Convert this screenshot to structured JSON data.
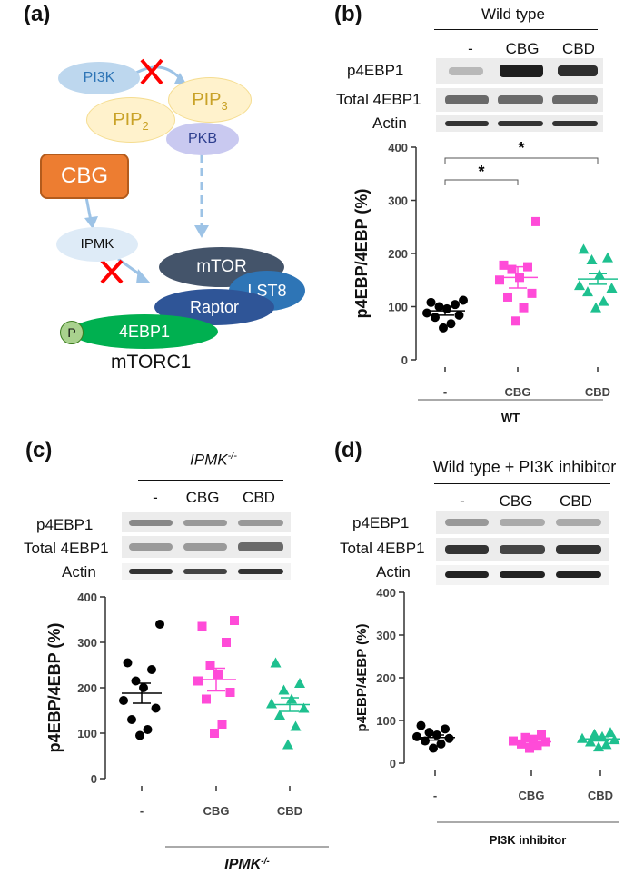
{
  "panel_a": {
    "label": "(a)",
    "nodes": {
      "pi3k": "PI3K",
      "pip2_base": "PIP",
      "pip2_sub": "2",
      "pip3_base": "PIP",
      "pip3_sub": "3",
      "pkb": "PKB",
      "cbg": "CBG",
      "ipmk": "IPMK",
      "mtor": "mTOR",
      "lst8": "LST8",
      "raptor": "Raptor",
      "p": "P",
      "e4ebp1": "4EBP1",
      "complex": "mTORC1"
    },
    "colors": {
      "cbg": "#ed7d31",
      "pi3k": "#bdd7ee",
      "pip": "#fff2cc",
      "pkb": "#c9c9f0",
      "mtor": "#44546a",
      "lst8": "#2e75b6",
      "raptor": "#2f5597",
      "e4ebp1": "#00b050",
      "arrow": "#9dc3e6",
      "cross": "#ff0000"
    }
  },
  "panel_b": {
    "label": "(b)",
    "header": "Wild type",
    "lanes": [
      "-",
      "CBG",
      "CBD"
    ],
    "rows": [
      "p4EBP1",
      "Total 4EBP1",
      "Actin"
    ],
    "chart_data": {
      "type": "scatter",
      "ylabel": "p4EBP/4EBP (%)",
      "ylim": [
        0,
        400
      ],
      "yticks": [
        "0",
        "100",
        "200",
        "300",
        "400"
      ],
      "categories": [
        "-",
        "CBG",
        "CBD"
      ],
      "group_label": "WT",
      "significance": [
        "*",
        "*"
      ],
      "series": [
        {
          "color": "#000000",
          "marker": "circle",
          "mean": 92,
          "sem": 8,
          "values": [
            60,
            68,
            80,
            84,
            88,
            96,
            100,
            104,
            108,
            112
          ]
        },
        {
          "color": "#ff4bd8",
          "marker": "square",
          "mean": 155,
          "sem": 20,
          "values": [
            73,
            98,
            118,
            125,
            150,
            155,
            170,
            175,
            178,
            260
          ]
        },
        {
          "color": "#1ec08f",
          "marker": "triangle",
          "mean": 152,
          "sem": 10,
          "values": [
            98,
            110,
            128,
            135,
            140,
            160,
            188,
            192,
            208
          ]
        }
      ]
    }
  },
  "panel_c": {
    "label": "(c)",
    "header": "IPMK",
    "header_sup": "-/-",
    "lanes": [
      "-",
      "CBG",
      "CBD"
    ],
    "rows": [
      "p4EBP1",
      "Total 4EBP1",
      "Actin"
    ],
    "chart_data": {
      "type": "scatter",
      "ylabel": "p4EBP/4EBP (%)",
      "ylim": [
        0,
        400
      ],
      "yticks": [
        "0",
        "100",
        "200",
        "300",
        "400"
      ],
      "categories": [
        "-",
        "CBG",
        "CBD"
      ],
      "group_label": "IPMK",
      "group_label_sup": "-/-",
      "series": [
        {
          "color": "#000000",
          "marker": "circle",
          "mean": 188,
          "sem": 22,
          "values": [
            95,
            108,
            130,
            155,
            172,
            200,
            215,
            240,
            255,
            340
          ]
        },
        {
          "color": "#ff4bd8",
          "marker": "square",
          "mean": 218,
          "sem": 25,
          "values": [
            100,
            120,
            175,
            190,
            215,
            230,
            250,
            300,
            335,
            348
          ]
        },
        {
          "color": "#1ec08f",
          "marker": "triangle",
          "mean": 163,
          "sem": 15,
          "values": [
            75,
            115,
            140,
            155,
            165,
            175,
            195,
            210,
            255
          ]
        }
      ]
    }
  },
  "panel_d": {
    "label": "(d)",
    "header": "Wild type + PI3K inhibitor",
    "lanes": [
      "-",
      "CBG",
      "CBD"
    ],
    "rows": [
      "p4EBP1",
      "Total 4EBP1",
      "Actin"
    ],
    "chart_data": {
      "type": "scatter",
      "ylabel": "p4EBP/4EBP (%)",
      "ylim": [
        0,
        400
      ],
      "yticks": [
        "0",
        "100",
        "200",
        "300",
        "400"
      ],
      "categories": [
        "-",
        "CBG",
        "CBD"
      ],
      "group_label": "PI3K inhibitor",
      "series": [
        {
          "color": "#000000",
          "marker": "circle",
          "mean": 60,
          "sem": 6,
          "values": [
            35,
            45,
            52,
            58,
            62,
            66,
            72,
            80,
            88
          ]
        },
        {
          "color": "#ff4bd8",
          "marker": "square",
          "mean": 50,
          "sem": 4,
          "values": [
            35,
            40,
            45,
            50,
            52,
            56,
            60,
            66
          ]
        },
        {
          "color": "#1ec08f",
          "marker": "triangle",
          "mean": 57,
          "sem": 5,
          "values": [
            38,
            44,
            50,
            55,
            58,
            62,
            68,
            72
          ]
        }
      ]
    }
  }
}
